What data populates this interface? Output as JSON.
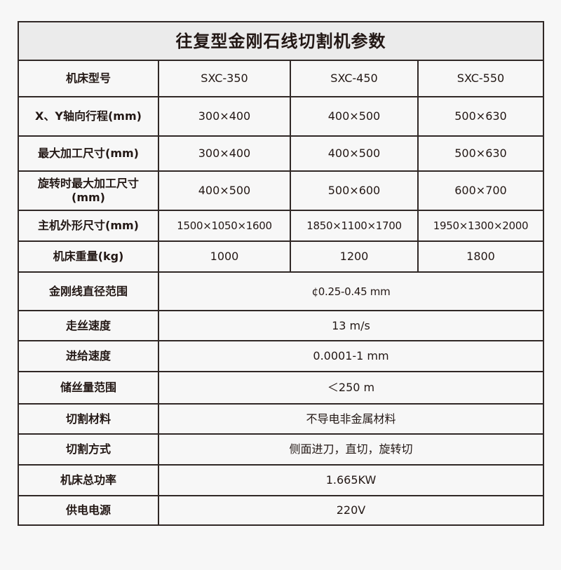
{
  "title": "往复型金刚石线切割机参数",
  "rows": [
    {
      "label": "机床型号",
      "values": [
        "SXC-350",
        "SXC-450",
        "SXC-550"
      ]
    },
    {
      "label": "X、Y轴向行程(mm)",
      "values": [
        "300×400",
        "400×500",
        "500×630"
      ]
    },
    {
      "label": "最大加工尺寸(mm)",
      "values": [
        "300×400",
        "400×500",
        "500×630"
      ]
    },
    {
      "label": "旋转时最大加工尺寸(mm)",
      "values": [
        "400×500",
        "500×600",
        "600×700"
      ]
    },
    {
      "label": "主机外形尺寸(mm)",
      "values": [
        "1500×1050×1600",
        "1850×1100×1700",
        "1950×1300×2000"
      ]
    },
    {
      "label": "机床重量(kg)",
      "values": [
        "1000",
        "1200",
        "1800"
      ]
    },
    {
      "label": "金刚线直径范围",
      "values": [
        "¢0.25-0.45 mm"
      ]
    },
    {
      "label": "走丝速度",
      "values": [
        "13 m/s"
      ]
    },
    {
      "label": "进给速度",
      "values": [
        "0.0001-1 mm"
      ]
    },
    {
      "label": "储丝量范围",
      "values": [
        "＜250 m"
      ]
    },
    {
      "label": "切割材料",
      "values": [
        "不导电非金属材料"
      ]
    },
    {
      "label": "切割方式",
      "values": [
        "侧面进刀，直切，旋转切"
      ]
    },
    {
      "label": "机床总功率",
      "values": [
        "1.665KW"
      ]
    },
    {
      "label": "供电电源",
      "values": [
        "220V"
      ]
    }
  ]
}
